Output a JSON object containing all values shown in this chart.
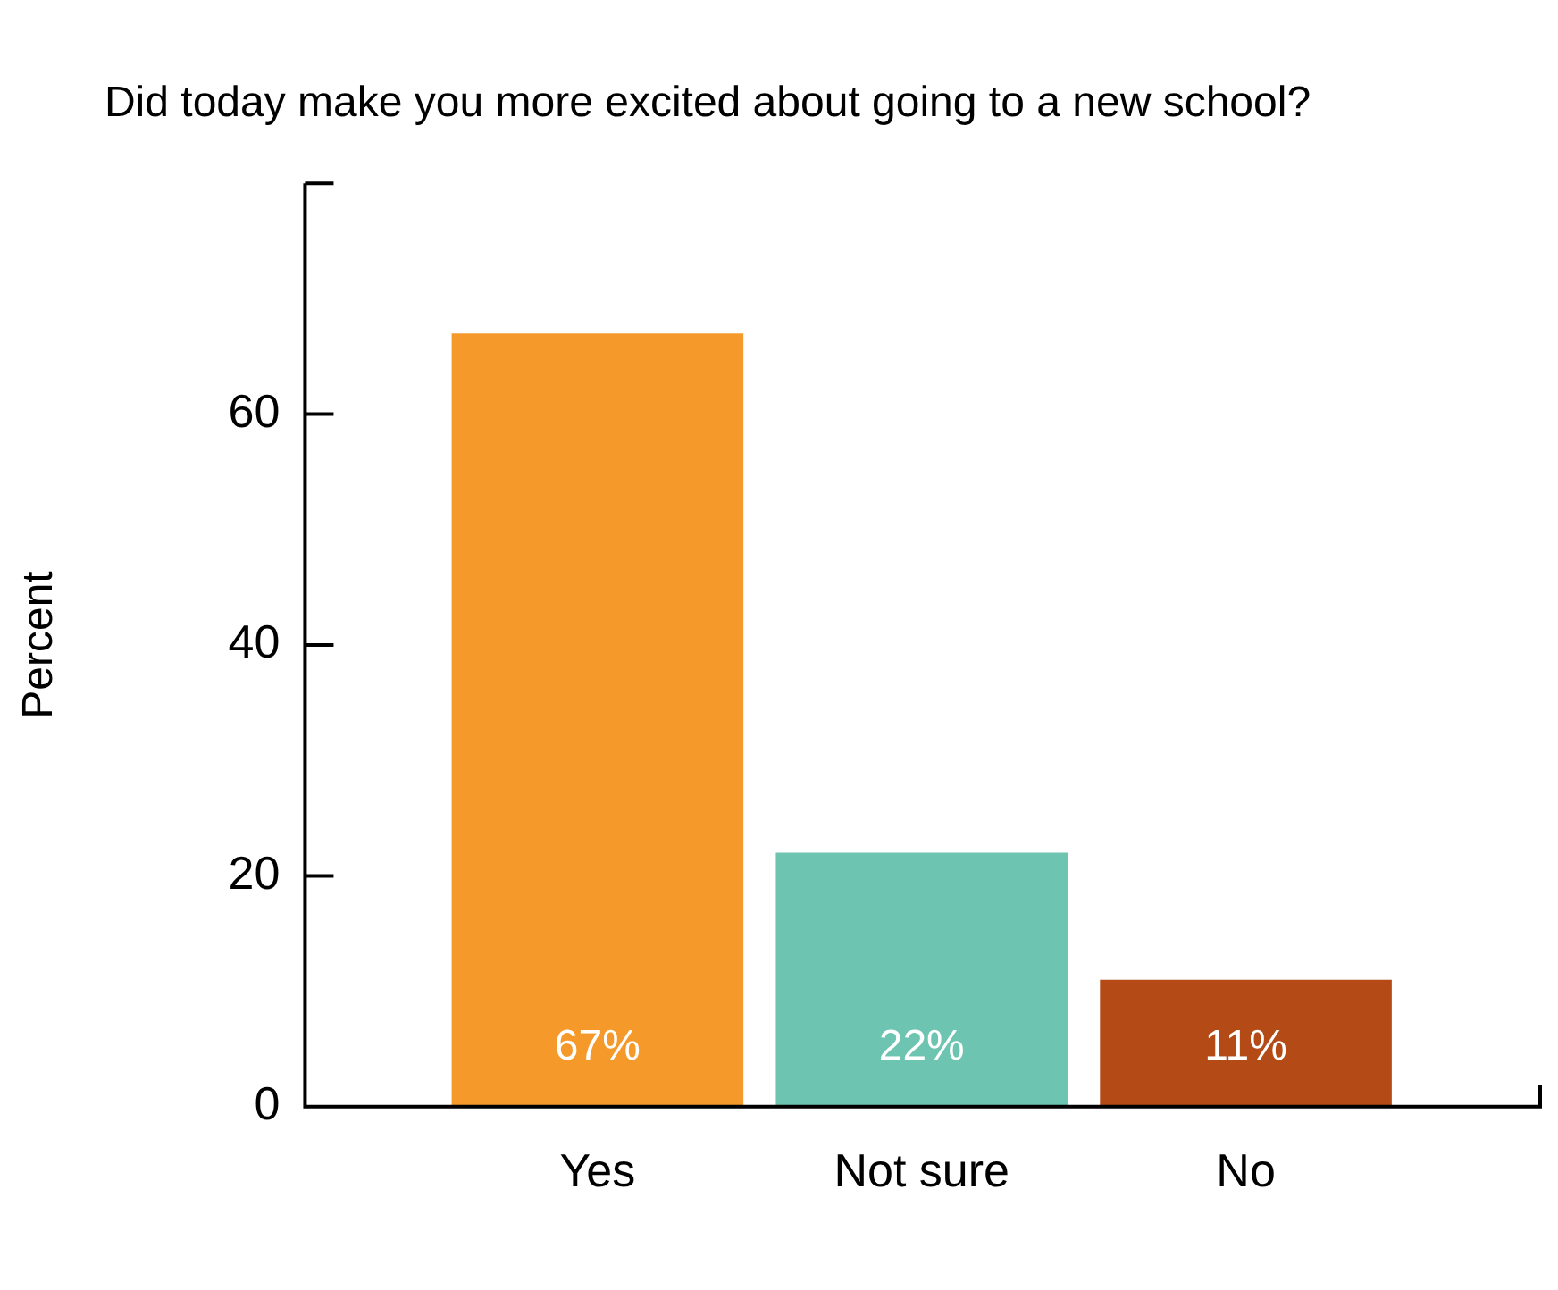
{
  "chart_data": {
    "type": "bar",
    "title": "Did today make you more excited about going to a new school?",
    "ylabel": "Percent",
    "categories": [
      "Yes",
      "Not sure",
      "No"
    ],
    "values": [
      67,
      22,
      11
    ],
    "colors": [
      "#f59a2a",
      "#6cc4b1",
      "#b44a16"
    ],
    "value_labels": [
      "67%",
      "22%",
      "11%"
    ],
    "ylim": [
      0,
      80
    ],
    "yticks": [
      0,
      20,
      40,
      60,
      {
        "value": 80,
        "label": null
      }
    ],
    "grid": false,
    "legend": false
  }
}
